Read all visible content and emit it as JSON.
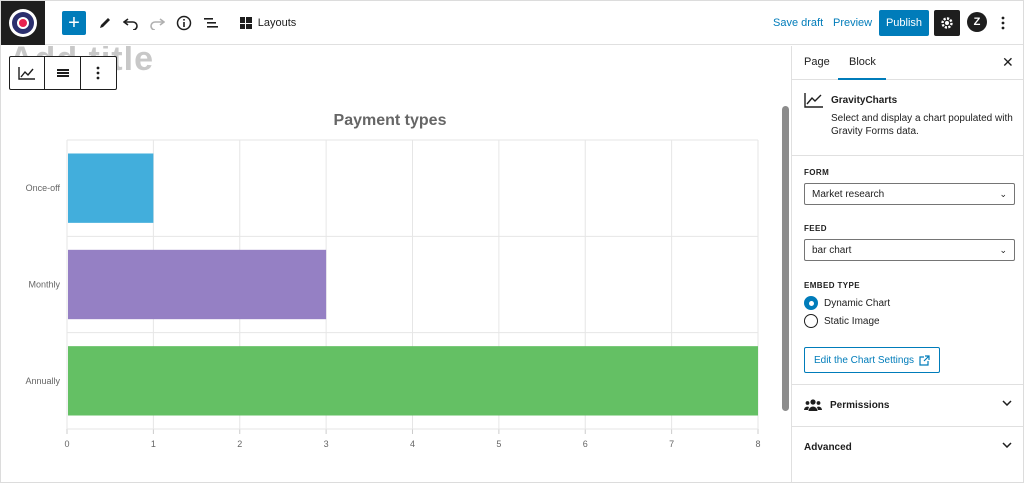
{
  "toolbar": {
    "add_label": "+",
    "layouts_label": "Layouts",
    "save_draft_label": "Save draft",
    "preview_label": "Preview",
    "publish_label": "Publish",
    "icons": [
      "pen-icon",
      "undo-icon",
      "redo-icon",
      "info-icon",
      "list-view-icon",
      "gear-icon",
      "z-icon",
      "more-vertical-icon"
    ]
  },
  "canvas": {
    "ghost_title": "Add title"
  },
  "chart_data": {
    "type": "bar",
    "orientation": "horizontal",
    "title": "Payment types",
    "categories": [
      "Once-off",
      "Monthly",
      "Annually"
    ],
    "values": [
      1,
      3,
      8
    ],
    "colors": [
      "#42aedc",
      "#9580c4",
      "#64c064"
    ],
    "xlim": [
      0,
      8
    ],
    "xticks": [
      0,
      1,
      2,
      3,
      4,
      5,
      6,
      7,
      8
    ],
    "grid": true,
    "xlabel": "",
    "ylabel": ""
  },
  "sidebar": {
    "tabs": [
      "Page",
      "Block"
    ],
    "active_tab": "Block",
    "block_title": "GravityCharts",
    "block_desc": "Select and display a chart populated with Gravity Forms data.",
    "form_label": "FORM",
    "form_value": "Market research",
    "feed_label": "FEED",
    "feed_value": "bar chart",
    "embed_label": "EMBED TYPE",
    "embed_options": [
      "Dynamic Chart",
      "Static Image"
    ],
    "embed_selected": "Dynamic Chart",
    "edit_button_label": "Edit the Chart Settings",
    "permissions_label": "Permissions",
    "advanced_label": "Advanced"
  },
  "colors": {
    "accent": "#007cba",
    "dark": "#1e1e1e"
  }
}
